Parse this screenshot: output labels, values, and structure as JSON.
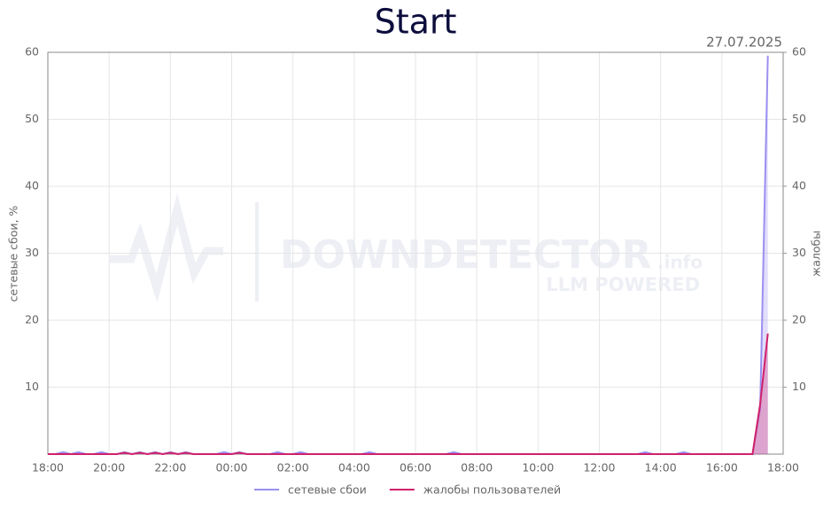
{
  "chart_data": {
    "type": "line",
    "title": "Start",
    "annotation": "27.07.2025",
    "ylabel": "сетевые сбои, %",
    "y2label": "жалобы",
    "watermark": {
      "brand": "DOWNDETECTOR",
      "suffix": ".info",
      "tagline": "LLM POWERED"
    },
    "x": [
      "18:00",
      "18:15",
      "18:30",
      "18:45",
      "19:00",
      "19:15",
      "19:30",
      "19:45",
      "20:00",
      "20:15",
      "20:30",
      "20:45",
      "21:00",
      "21:15",
      "21:30",
      "21:45",
      "22:00",
      "22:15",
      "22:30",
      "22:45",
      "23:00",
      "23:15",
      "23:30",
      "23:45",
      "00:00",
      "00:15",
      "00:30",
      "00:45",
      "01:00",
      "01:15",
      "01:30",
      "01:45",
      "02:00",
      "02:15",
      "02:30",
      "02:45",
      "03:00",
      "03:15",
      "03:30",
      "03:45",
      "04:00",
      "04:15",
      "04:30",
      "04:45",
      "05:00",
      "05:15",
      "05:30",
      "05:45",
      "06:00",
      "06:15",
      "06:30",
      "06:45",
      "07:00",
      "07:15",
      "07:30",
      "07:45",
      "08:00",
      "08:15",
      "08:30",
      "08:45",
      "09:00",
      "09:15",
      "09:30",
      "09:45",
      "10:00",
      "10:15",
      "10:30",
      "10:45",
      "11:00",
      "11:15",
      "11:30",
      "11:45",
      "12:00",
      "12:15",
      "12:30",
      "12:45",
      "13:00",
      "13:15",
      "13:30",
      "13:45",
      "14:00",
      "14:15",
      "14:30",
      "14:45",
      "15:00",
      "15:15",
      "15:30",
      "15:45",
      "16:00",
      "16:15",
      "16:30",
      "16:45",
      "17:00",
      "17:15",
      "17:30"
    ],
    "series": [
      {
        "name": "сетевые сбои",
        "color": "#9b8ff0",
        "axis": "y",
        "values": [
          0,
          0,
          0.3,
          0,
          0.3,
          0,
          0,
          0.3,
          0,
          0,
          0.3,
          0,
          0.3,
          0,
          0.3,
          0,
          0.3,
          0,
          0.3,
          0,
          0,
          0,
          0,
          0.3,
          0,
          0.3,
          0,
          0,
          0,
          0,
          0.3,
          0,
          0,
          0.3,
          0,
          0,
          0,
          0,
          0,
          0,
          0,
          0,
          0.3,
          0,
          0,
          0,
          0,
          0,
          0,
          0,
          0,
          0,
          0,
          0.3,
          0,
          0,
          0,
          0,
          0,
          0,
          0,
          0,
          0,
          0,
          0,
          0,
          0,
          0,
          0,
          0,
          0,
          0,
          0,
          0,
          0,
          0,
          0,
          0,
          0.3,
          0,
          0,
          0,
          0,
          0.3,
          0,
          0,
          0,
          0,
          0,
          0,
          0,
          0,
          0,
          6.9,
          59.5
        ]
      },
      {
        "name": "жалобы пользователей",
        "color": "#d0216b",
        "axis": "y2",
        "values": [
          0,
          0,
          0,
          0,
          0,
          0,
          0,
          0,
          0,
          0,
          0.2,
          0,
          0.2,
          0,
          0.2,
          0,
          0.2,
          0,
          0.2,
          0,
          0,
          0,
          0,
          0,
          0,
          0.2,
          0,
          0,
          0,
          0,
          0,
          0,
          0,
          0,
          0,
          0,
          0,
          0,
          0,
          0,
          0,
          0,
          0,
          0,
          0,
          0,
          0,
          0,
          0,
          0,
          0,
          0,
          0,
          0,
          0,
          0,
          0,
          0,
          0,
          0,
          0,
          0,
          0,
          0,
          0,
          0,
          0,
          0,
          0,
          0,
          0,
          0,
          0,
          0,
          0,
          0,
          0,
          0,
          0,
          0,
          0,
          0,
          0,
          0,
          0,
          0,
          0,
          0,
          0,
          0,
          0,
          0,
          0,
          7.5,
          18
        ]
      }
    ],
    "xlim": [
      "18:00",
      "18:00"
    ],
    "xticks": [
      "18:00",
      "20:00",
      "22:00",
      "00:00",
      "02:00",
      "04:00",
      "06:00",
      "08:00",
      "10:00",
      "12:00",
      "14:00",
      "16:00",
      "18:00"
    ],
    "ylim": [
      0,
      60
    ],
    "yticks": [
      10,
      20,
      30,
      40,
      50,
      60
    ],
    "y2lim": [
      0,
      60
    ],
    "y2ticks": [
      10,
      20,
      30,
      40,
      50,
      60
    ],
    "grid": true,
    "legend": "bottom"
  }
}
